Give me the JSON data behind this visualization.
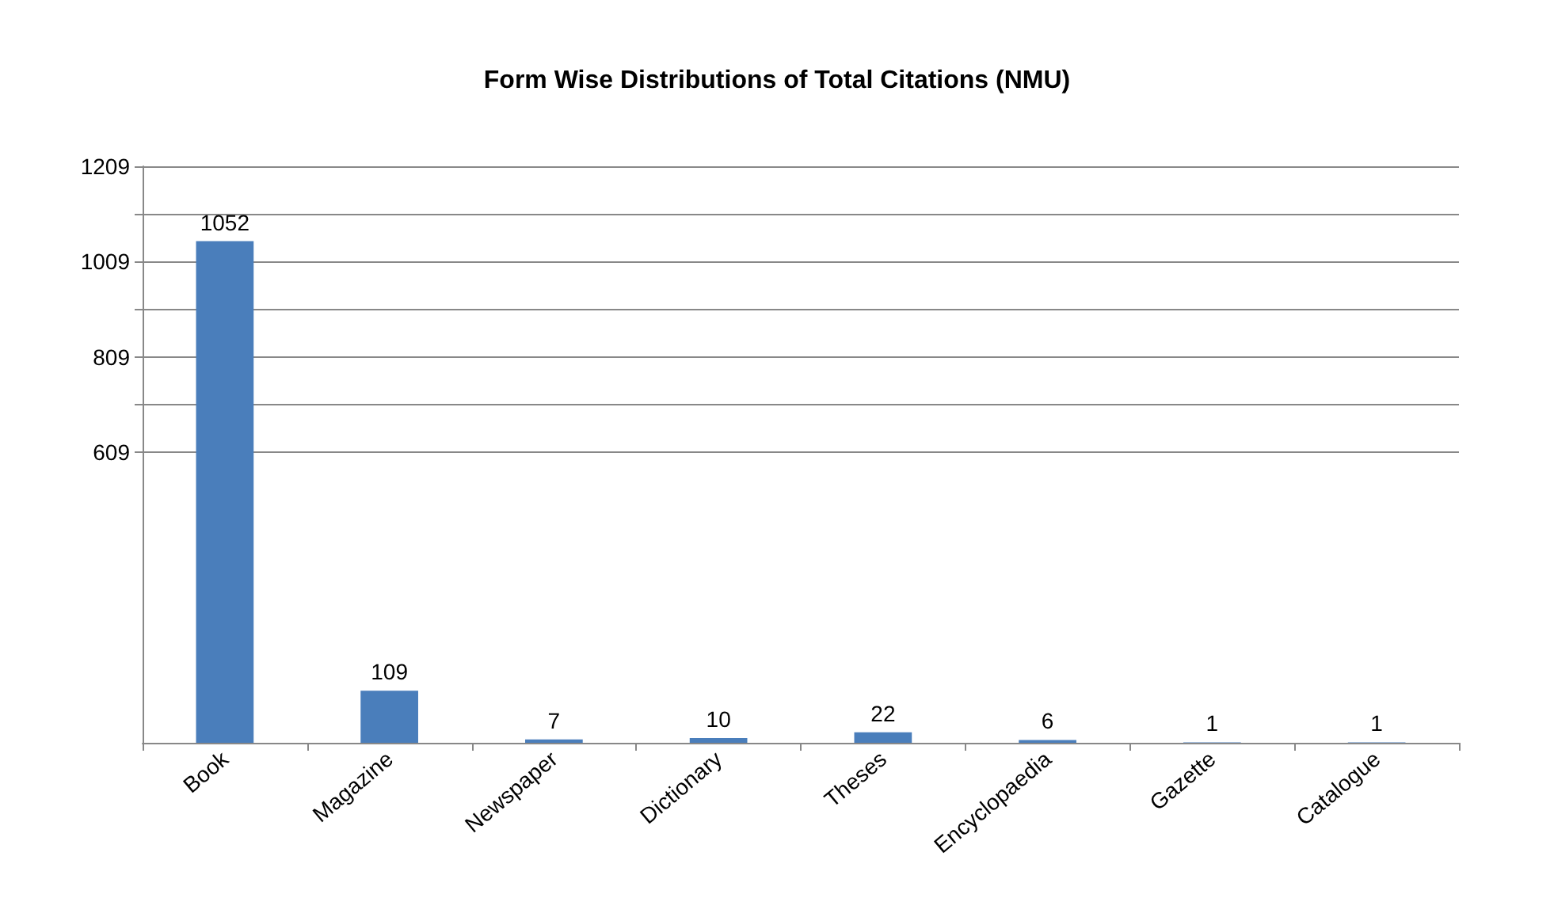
{
  "chart_data": {
    "type": "bar",
    "title": "Form Wise Distributions of Total Citations (NMU)",
    "categories": [
      "Book",
      "Magazine",
      "Newspaper",
      "Dictionary",
      "Theses",
      "Encyclopaedia",
      "Gazette",
      "Catalogue"
    ],
    "values": [
      1052,
      109,
      7,
      10,
      22,
      6,
      1,
      1
    ],
    "color": "#4a7ebb",
    "ylim": [
      0,
      1209
    ],
    "yticks": [
      609,
      {
        "value": 709,
        "label": null
      },
      809,
      {
        "value": 909,
        "label": null
      },
      1009,
      {
        "value": 1109,
        "label": null
      },
      1209
    ],
    "grid": "y",
    "data_labels": true
  }
}
